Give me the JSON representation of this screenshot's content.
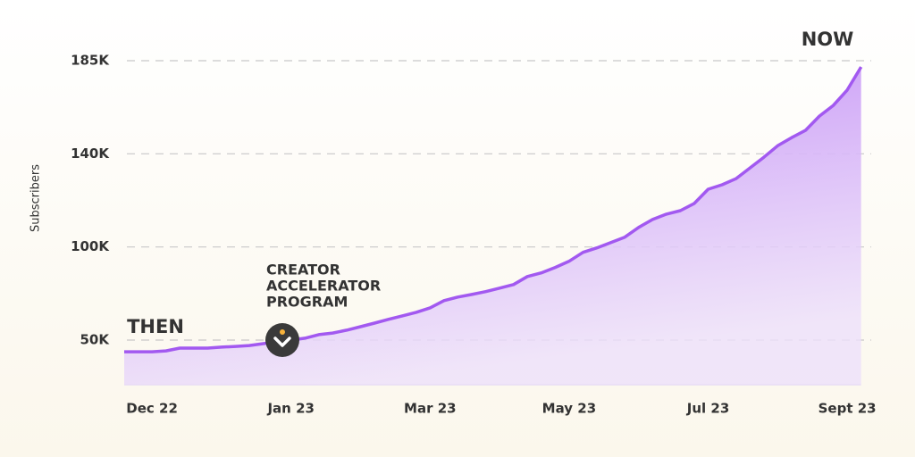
{
  "chart_data": {
    "type": "area",
    "y_label": "Subscribers",
    "categories": [
      null,
      null,
      "Dec 22",
      null,
      null,
      null,
      null,
      null,
      null,
      null,
      null,
      null,
      "Jan 23",
      null,
      null,
      null,
      null,
      null,
      null,
      null,
      null,
      null,
      "Mar 23",
      null,
      null,
      null,
      null,
      null,
      null,
      null,
      null,
      null,
      "May 23",
      null,
      null,
      null,
      null,
      null,
      null,
      null,
      null,
      null,
      "Jul 23",
      null,
      null,
      null,
      null,
      null,
      null,
      null,
      null,
      null,
      "Sept 23",
      null
    ],
    "values": [
      43700,
      43700,
      43700,
      44200,
      45700,
      45700,
      45700,
      46200,
      46600,
      47100,
      48100,
      49000,
      50000,
      51000,
      52900,
      53800,
      55300,
      57200,
      59100,
      61100,
      63000,
      64900,
      67300,
      71200,
      73100,
      74500,
      76000,
      77900,
      79800,
      84100,
      86100,
      89000,
      92300,
      97100,
      99500,
      101900,
      104200,
      108400,
      111800,
      114100,
      115600,
      118700,
      124800,
      126700,
      129300,
      133900,
      138500,
      143900,
      147800,
      151300,
      158200,
      163400,
      170800,
      182000
    ],
    "color": "#a259f0",
    "ylim": [
      26000,
      190000
    ],
    "yticks": [
      {
        "value": 50000,
        "label": "50K"
      },
      {
        "value": 100000,
        "label": "100K"
      },
      {
        "value": 140000,
        "label": "140K"
      },
      {
        "value": 185000,
        "label": "185K"
      }
    ],
    "grid": true,
    "then_label": "THEN",
    "then_color": "#f7b23b",
    "now_label": "NOW",
    "now_color": "#6fd65a",
    "milestone_label": [
      "CREATOR",
      "ACCELERATOR",
      "PROGRAM"
    ]
  }
}
